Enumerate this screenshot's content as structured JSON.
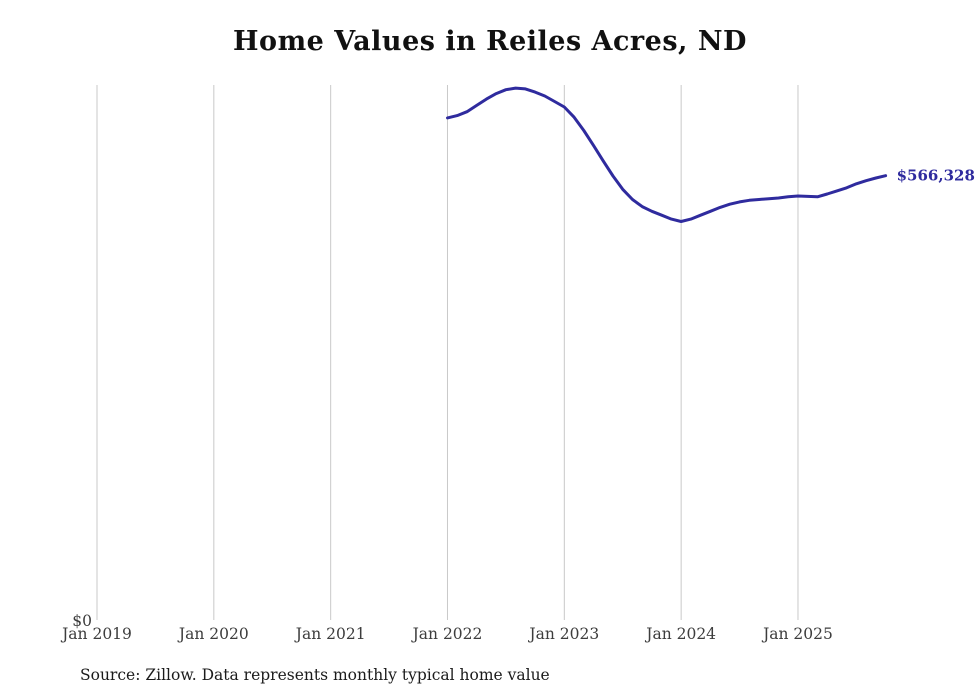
{
  "chart_data": {
    "type": "line",
    "title": "Home Values in Reiles Acres, ND",
    "source": "Source: Zillow. Data represents monthly typical home value",
    "series_name": "Monthly typical home value",
    "xlabel": "",
    "ylabel": "",
    "ylim": [
      0,
      682000
    ],
    "grid": true,
    "legend": "none",
    "line_color": "#2f2b9e",
    "grid_color": "#c9c9c9",
    "y_zero_label": "$0",
    "end_label": "$566,328",
    "x_ticks": [
      "Jan 2019",
      "Jan 2020",
      "Jan 2021",
      "Jan 2022",
      "Jan 2023",
      "Jan 2024",
      "Jan 2025"
    ],
    "x": [
      "2022-01",
      "2022-02",
      "2022-03",
      "2022-04",
      "2022-05",
      "2022-06",
      "2022-07",
      "2022-08",
      "2022-09",
      "2022-10",
      "2022-11",
      "2022-12",
      "2023-01",
      "2023-02",
      "2023-03",
      "2023-04",
      "2023-05",
      "2023-06",
      "2023-07",
      "2023-08",
      "2023-09",
      "2023-10",
      "2023-11",
      "2023-12",
      "2024-01",
      "2024-02",
      "2024-03",
      "2024-04",
      "2024-05",
      "2024-06",
      "2024-07",
      "2024-08",
      "2024-09",
      "2024-10",
      "2024-11",
      "2024-12",
      "2025-01",
      "2025-02",
      "2025-03",
      "2025-04",
      "2025-05",
      "2025-06",
      "2025-07",
      "2025-08",
      "2025-09",
      "2025-10"
    ],
    "values": [
      640000,
      643000,
      648000,
      656000,
      664000,
      671000,
      676000,
      678000,
      677000,
      673000,
      668000,
      661000,
      654000,
      641000,
      624000,
      605000,
      585000,
      566000,
      549000,
      536000,
      527000,
      521000,
      516000,
      511000,
      508000,
      511000,
      516000,
      521000,
      526000,
      530000,
      533000,
      535000,
      536000,
      537000,
      538000,
      539500,
      540500,
      540000,
      539500,
      543000,
      547000,
      551000,
      556000,
      560000,
      563500,
      566328
    ]
  }
}
